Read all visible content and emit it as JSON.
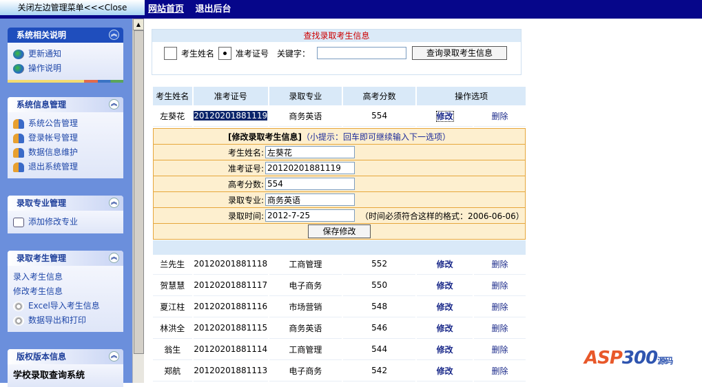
{
  "top": {
    "close_menu": "关闭左边管理菜单<<<Close",
    "nav": [
      "网站首页",
      "退出后台"
    ]
  },
  "sidebar": [
    {
      "title": "系统相关说明",
      "items": [
        {
          "label": "更新通知",
          "icon": "globe-icon"
        },
        {
          "label": "操作说明",
          "icon": "globe-icon"
        }
      ]
    },
    {
      "title": "系统信息管理",
      "items": [
        {
          "label": "系统公告管理",
          "icon": "users-icon"
        },
        {
          "label": "登录帐号管理",
          "icon": "users-icon"
        },
        {
          "label": "数据信息维护",
          "icon": "users-icon"
        },
        {
          "label": "退出系统管理",
          "icon": "users-icon"
        }
      ]
    },
    {
      "title": "录取专业管理",
      "items": [
        {
          "label": "添加修改专业",
          "icon": "document-icon"
        }
      ]
    },
    {
      "title": "录取考生管理",
      "items": [
        {
          "label": "录入考生信息",
          "icon": "edit-icon"
        },
        {
          "label": "修改考生信息",
          "icon": "edit-icon"
        },
        {
          "label": "Excel导入考生信息",
          "icon": "spinner-icon"
        },
        {
          "label": "数据导出和打印",
          "icon": "spinner-icon"
        }
      ]
    },
    {
      "title": "版权版本信息",
      "items": [
        {
          "label": "学校录取查询系统"
        }
      ]
    }
  ],
  "search": {
    "title": "查找录取考生信息",
    "opt_name": "考生姓名",
    "opt_id": "准考证号",
    "selected": "准考证号",
    "keyword_label": "关键字：",
    "keyword_value": "",
    "button": "查询录取考生信息"
  },
  "table": {
    "headers": [
      "考生姓名",
      "准考证号",
      "录取专业",
      "高考分数",
      "操作选项"
    ],
    "edit_label": "修改",
    "delete_label": "删除",
    "first": {
      "name": "左葵花",
      "id": "20120201881119",
      "major": "商务英语",
      "score": "554"
    },
    "rows": [
      {
        "name": "兰先生",
        "id": "20120201881118",
        "major": "工商管理",
        "score": "552"
      },
      {
        "name": "贺慧慧",
        "id": "20120201881117",
        "major": "电子商务",
        "score": "550"
      },
      {
        "name": "夏江柱",
        "id": "20120201881116",
        "major": "市场营销",
        "score": "548"
      },
      {
        "name": "林洪全",
        "id": "20120201881115",
        "major": "商务英语",
        "score": "546"
      },
      {
        "name": "翁生",
        "id": "20120201881114",
        "major": "工商管理",
        "score": "544"
      },
      {
        "name": "郑航",
        "id": "20120201881113",
        "major": "电子商务",
        "score": "542"
      }
    ]
  },
  "edit_form": {
    "title": "[修改录取考生信息]",
    "hint": "（小提示：回车即可继续输入下一选项）",
    "fields": [
      {
        "label": "考生姓名:",
        "value": "左葵花"
      },
      {
        "label": "准考证号:",
        "value": "20120201881119"
      },
      {
        "label": "高考分数:",
        "value": "554"
      },
      {
        "label": "录取专业:",
        "value": "商务英语"
      },
      {
        "label": "录取时间:",
        "value": "2012-7-25"
      }
    ],
    "date_note": "（时间必须符合这样的格式：2006-06-06）",
    "save": "保存修改"
  },
  "logo": "ASP300源码 .com"
}
